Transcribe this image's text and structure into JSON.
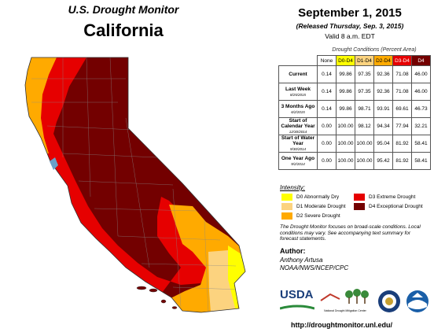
{
  "header": {
    "title_line1": "U.S. Drought Monitor",
    "title_line2": "California",
    "date": "September 1, 2015",
    "released": "(Released Thursday, Sep. 3, 2015)",
    "valid": "Valid 8 a.m. EDT"
  },
  "table": {
    "caption": "Drought Conditions (Percent Area)",
    "columns": [
      "None",
      "D0-D4",
      "D1-D4",
      "D2-D4",
      "D3-D4",
      "D4"
    ],
    "rows": [
      {
        "label": "Current",
        "sub": "",
        "values": [
          "0.14",
          "99.86",
          "97.35",
          "92.36",
          "71.08",
          "46.00"
        ]
      },
      {
        "label": "Last Week",
        "sub": "8/25/2015",
        "values": [
          "0.14",
          "99.86",
          "97.35",
          "92.36",
          "71.08",
          "46.00"
        ]
      },
      {
        "label": "3 Months Ago",
        "sub": "6/2/2015",
        "values": [
          "0.14",
          "99.86",
          "98.71",
          "93.91",
          "69.61",
          "46.73"
        ]
      },
      {
        "label": "Start of Calendar Year",
        "sub": "12/30/2014",
        "values": [
          "0.00",
          "100.00",
          "98.12",
          "94.34",
          "77.94",
          "32.21"
        ]
      },
      {
        "label": "Start of Water Year",
        "sub": "9/30/2014",
        "values": [
          "0.00",
          "100.00",
          "100.00",
          "95.04",
          "81.92",
          "58.41"
        ]
      },
      {
        "label": "One Year Ago",
        "sub": "9/2/2014",
        "values": [
          "0.00",
          "100.00",
          "100.00",
          "95.42",
          "81.92",
          "58.41"
        ]
      }
    ]
  },
  "legend": {
    "heading": "Intensity:",
    "items": [
      {
        "label": "D0 Abnormally Dry",
        "color": "#ffff00"
      },
      {
        "label": "D1 Moderate Drought",
        "color": "#fcd37f"
      },
      {
        "label": "D2 Severe Drought",
        "color": "#ffaa00"
      },
      {
        "label": "D3 Extreme Drought",
        "color": "#e60000"
      },
      {
        "label": "D4 Exceptional Drought",
        "color": "#730000"
      }
    ]
  },
  "note": "The Drought Monitor focuses on broad-scale conditions. Local conditions may vary. See accompanying text summary for forecast statements.",
  "author": {
    "heading": "Author:",
    "name": "Anthony Artusa",
    "org": "NOAA/NWS/NCEP/CPC"
  },
  "logos": {
    "usda": "USDA",
    "ndmc": "National Drought Mitigation Center"
  },
  "url": "http://droughtmonitor.unl.edu/",
  "map": {
    "region": "California",
    "dominant_category": "D4",
    "icons": [
      "california-map",
      "usda-logo",
      "ndmc-logo",
      "doc-seal-icon",
      "noaa-logo"
    ]
  }
}
